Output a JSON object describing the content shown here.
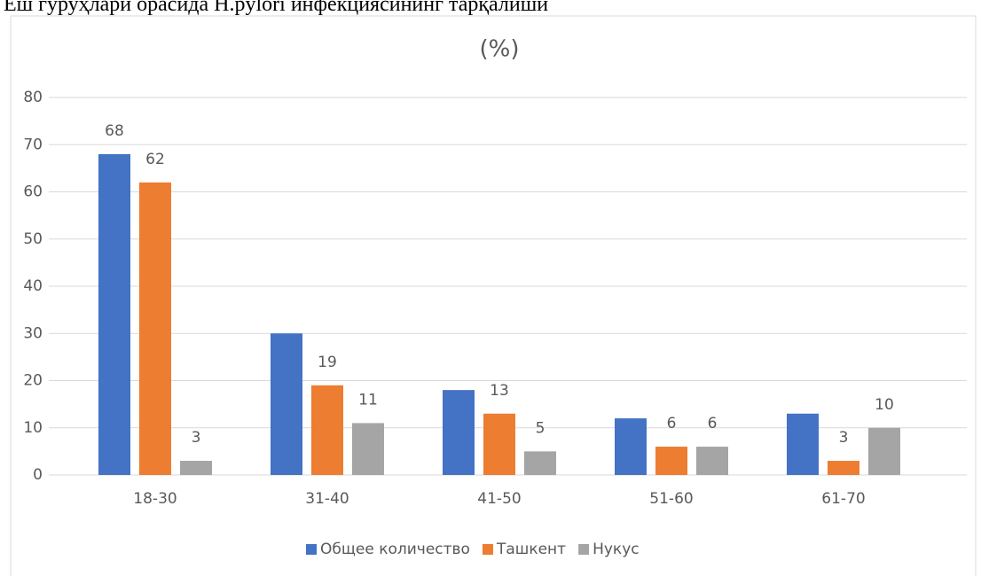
{
  "chart_data": {
    "type": "bar",
    "heading": "Ёш гуруҳлари орасида H.pylori инфекциясининг тарқалиши",
    "title": "(%)",
    "categories": [
      "18-30",
      "31-40",
      "41-50",
      "51-60",
      "61-70"
    ],
    "series": [
      {
        "name": "Общее количество",
        "color": "#4472c4",
        "values": [
          68,
          30,
          18,
          12,
          13
        ],
        "value_labels": [
          "68",
          null,
          null,
          null,
          null
        ]
      },
      {
        "name": "Ташкент",
        "color": "#ed7d31",
        "values": [
          62,
          19,
          13,
          6,
          3
        ],
        "value_labels": [
          "62",
          "19",
          "13",
          "6",
          "3"
        ]
      },
      {
        "name": "Нукус",
        "color": "#a5a5a5",
        "values": [
          3,
          11,
          5,
          6,
          10
        ],
        "value_labels": [
          "3",
          "11",
          "5",
          "6",
          "10"
        ]
      }
    ],
    "ylim": [
      0,
      80
    ],
    "yticks": [
      0,
      10,
      20,
      30,
      40,
      50,
      60,
      70,
      80
    ],
    "grid": true,
    "legend": "bottom"
  }
}
